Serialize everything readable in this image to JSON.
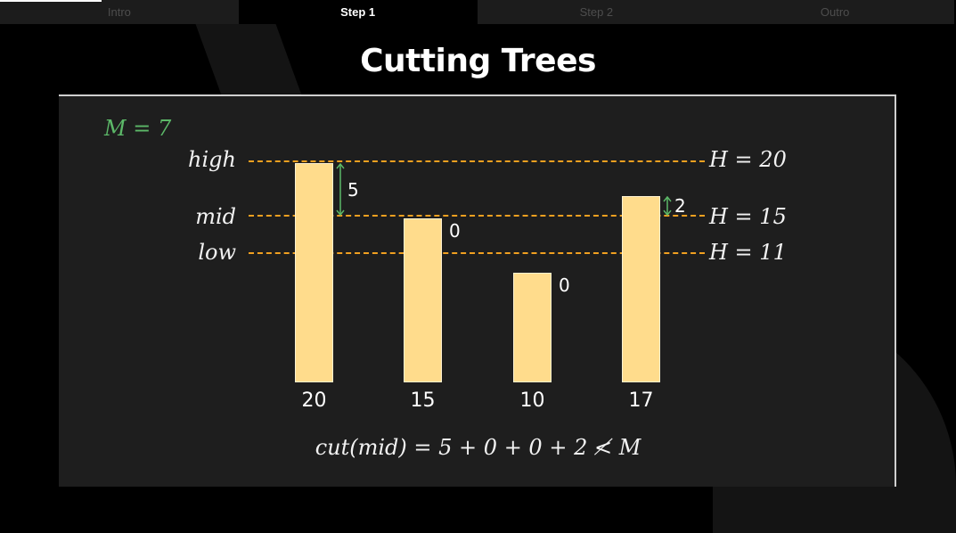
{
  "tabs": [
    {
      "label": "Intro"
    },
    {
      "label": "Step 1",
      "active": true
    },
    {
      "label": "Step 2"
    },
    {
      "label": "Outro"
    }
  ],
  "title": "Cutting Trees",
  "m_value": "M = 7",
  "levels": {
    "high": "high",
    "mid": "mid",
    "low": "low"
  },
  "h_values": {
    "high": "H = 20",
    "mid": "H = 15",
    "low": "H = 11"
  },
  "trees": [
    {
      "height": 20,
      "label": "20",
      "cut": "5"
    },
    {
      "height": 15,
      "label": "15",
      "cut": "0"
    },
    {
      "height": 10,
      "label": "10",
      "cut": "0"
    },
    {
      "height": 17,
      "label": "17",
      "cut": "2"
    }
  ],
  "formula": "cut(mid) = 5 + 0 + 0 + 2 ≮ M",
  "colors": {
    "tree": "#ffdc8c",
    "guide": "#f0a020",
    "m_value": "#5cb868",
    "arrow": "#5cb868"
  }
}
